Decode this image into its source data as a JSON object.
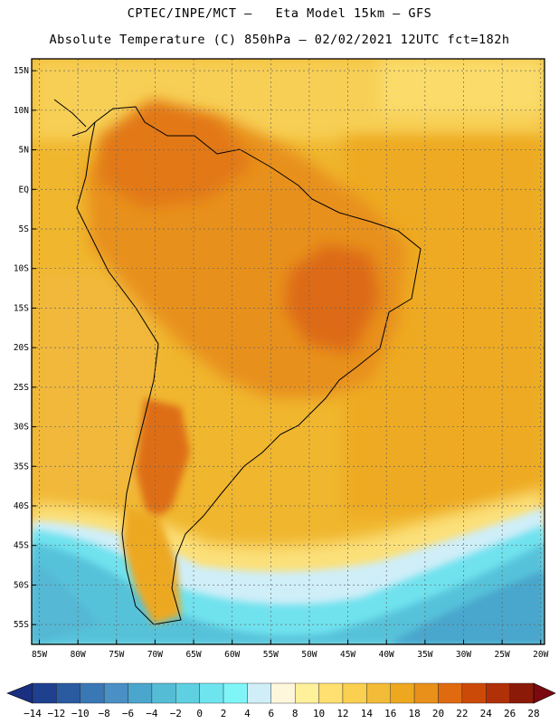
{
  "header": {
    "line1": "CPTEC/INPE/MCT –   Eta Model 15km – GFS",
    "line2": "Absolute Temperature (C) 850hPa – 02/02/2021 12UTC fct=182h"
  },
  "map": {
    "lat_ticks": [
      "15N",
      "10N",
      "5N",
      "EQ",
      "5S",
      "10S",
      "15S",
      "20S",
      "25S",
      "30S",
      "35S",
      "40S",
      "45S",
      "50S",
      "55S"
    ],
    "lon_ticks": [
      "85W",
      "80W",
      "75W",
      "70W",
      "65W",
      "60W",
      "55W",
      "50W",
      "45W",
      "40W",
      "35W",
      "30W",
      "25W",
      "20W"
    ],
    "extent": {
      "lon_min": -86,
      "lon_max": -19.5,
      "lat_min": -57.5,
      "lat_max": 16.5
    },
    "gridlines": "dashed"
  },
  "colorbar": {
    "labels": [
      "-14",
      "-12",
      "-10",
      "-8",
      "-6",
      "-4",
      "-2",
      "0",
      "2",
      "4",
      "6",
      "8",
      "10",
      "12",
      "14",
      "16",
      "18",
      "20",
      "22",
      "24",
      "26",
      "28"
    ],
    "colors": [
      "#1f3f8f",
      "#2a5aa0",
      "#3a78b5",
      "#4a90c5",
      "#4aa6cc",
      "#55bcd6",
      "#5fd0e2",
      "#6ee4ee",
      "#7ff5f8",
      "#cfeef8",
      "#fff7dc",
      "#fff09a",
      "#ffe070",
      "#fbcf50",
      "#f2bb38",
      "#eda820",
      "#e8901a",
      "#e06a10",
      "#cc4a08",
      "#b03008",
      "#8c1a08"
    ],
    "under_color": "#1a2f80",
    "over_color": "#7a0a10"
  }
}
